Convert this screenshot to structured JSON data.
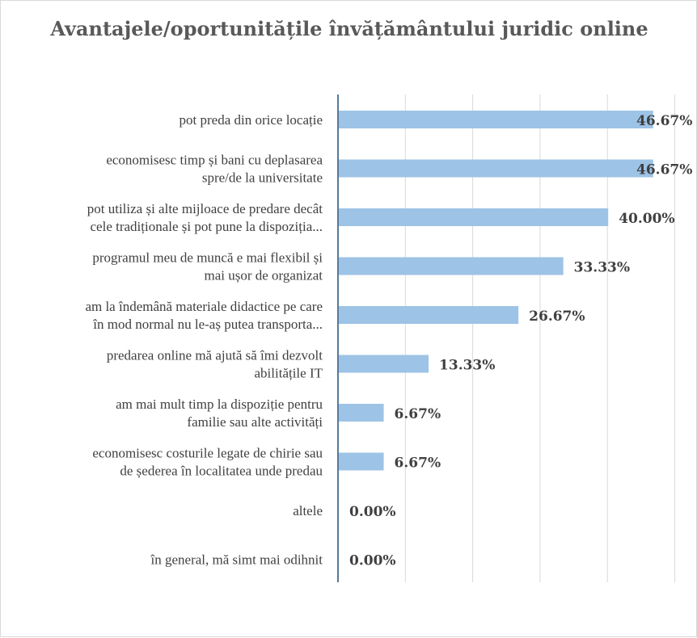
{
  "chart_data": {
    "type": "bar",
    "orientation": "horizontal",
    "title": "Avantajele/oportunitățile învățământului juridic online",
    "categories": [
      [
        "pot preda din orice locație"
      ],
      [
        "economisesc timp și bani cu deplasarea",
        "spre/de la universitate"
      ],
      [
        "pot utiliza și alte mijloace de predare decât",
        "cele tradiționale și pot pune la dispoziția..."
      ],
      [
        "programul meu de muncă e mai flexibil și",
        "mai ușor de organizat"
      ],
      [
        "am la îndemână materiale didactice pe care",
        "în mod normal nu le-aș putea transporta..."
      ],
      [
        "predarea online mă ajută să îmi dezvolt",
        "abilitățile IT"
      ],
      [
        "am mai mult timp la dispoziție pentru",
        "familie sau alte activități"
      ],
      [
        "economisesc costurile legate de chirie sau",
        "de șederea în localitatea unde predau"
      ],
      [
        "altele"
      ],
      [
        "în general, mă simt mai odihnit"
      ]
    ],
    "values": [
      46.67,
      46.67,
      40.0,
      33.33,
      26.67,
      13.33,
      6.67,
      6.67,
      0.0,
      0.0
    ],
    "data_labels": [
      "46.67%",
      "46.67%",
      "40.00%",
      "33.33%",
      "26.67%",
      "13.33%",
      "6.67%",
      "6.67%",
      "0.00%",
      "0.00%"
    ],
    "xlim": [
      0,
      50
    ],
    "grid": "vertical",
    "legend": "none",
    "bar_color": "#9dc3e6"
  }
}
